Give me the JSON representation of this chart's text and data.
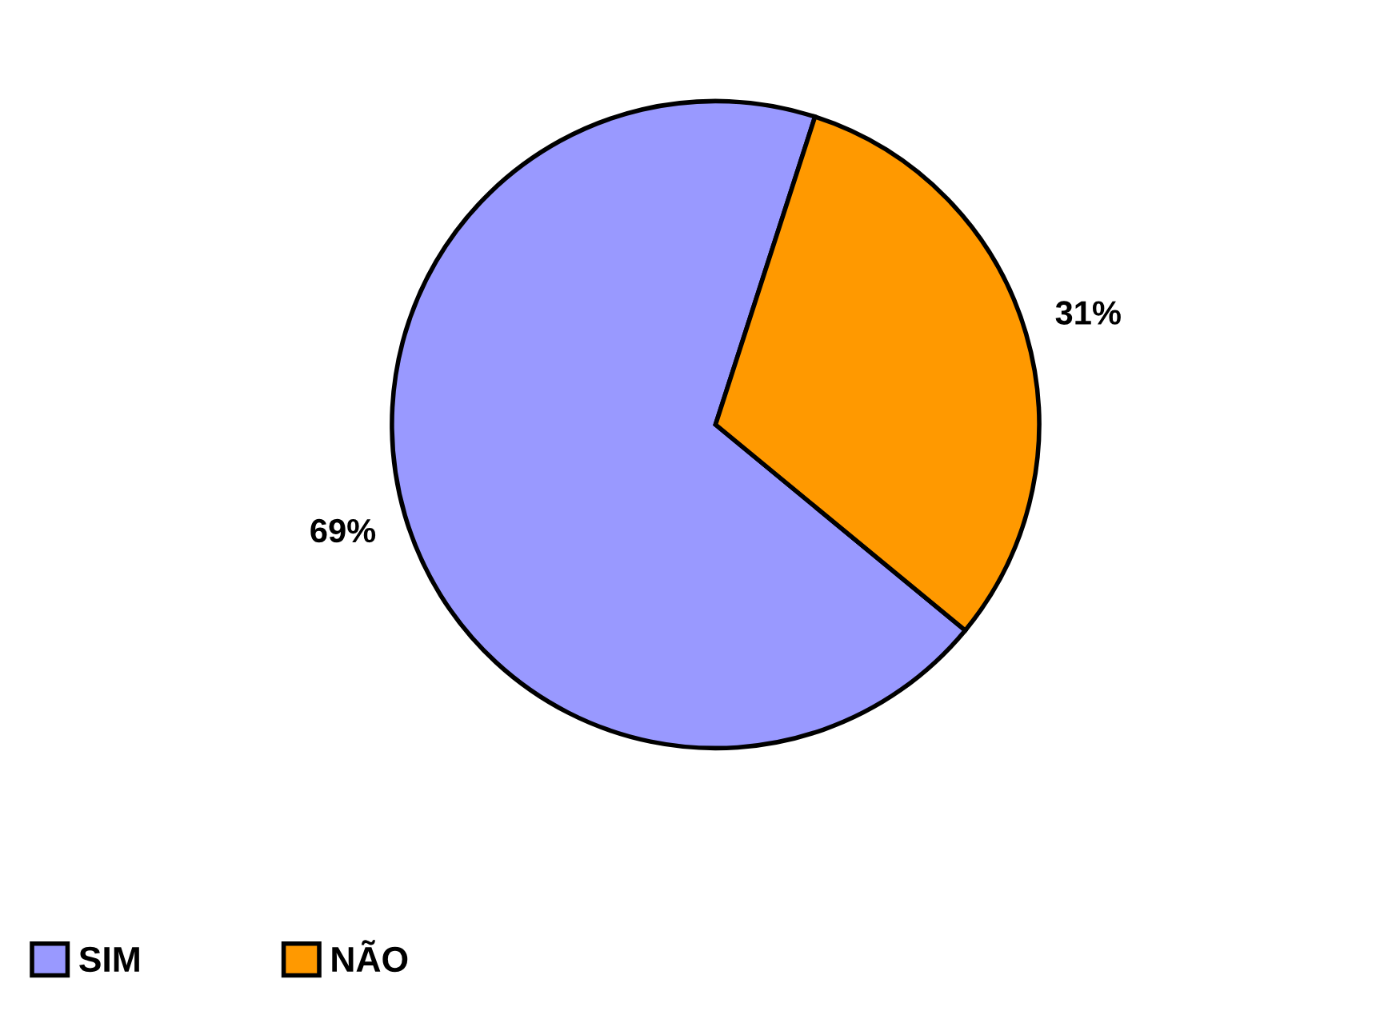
{
  "chart_data": {
    "type": "pie",
    "categories": [
      "SIM",
      "NÃO"
    ],
    "values": [
      69,
      31
    ],
    "colors": [
      "#9999ff",
      "#ff9900"
    ],
    "value_labels": [
      "69%",
      "31%"
    ],
    "legend": "bottom left"
  }
}
